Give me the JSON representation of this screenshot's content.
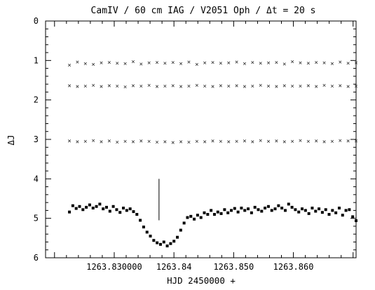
{
  "chart_data": {
    "type": "scatter",
    "title": "CamIV / 60 cm IAG / V2051 Oph / Δt = 20 s",
    "xlabel": "HJD 2450000 +",
    "ylabel": "ΔJ",
    "xlim": [
      1263.8185,
      1263.8705
    ],
    "ylim": [
      6,
      0
    ],
    "y_inverted": true,
    "grid": false,
    "x_ticks": [
      {
        "value": 1263.83,
        "label": "1263.830000"
      },
      {
        "value": 1263.84,
        "label": "1263.84"
      },
      {
        "value": 1263.85,
        "label": "1263.850"
      },
      {
        "value": 1263.86,
        "label": "1263.860"
      }
    ],
    "y_ticks": [
      {
        "value": 0,
        "label": "0"
      },
      {
        "value": 1,
        "label": "1"
      },
      {
        "value": 2,
        "label": "2"
      },
      {
        "value": 3,
        "label": "3"
      },
      {
        "value": 4,
        "label": "4"
      },
      {
        "value": 5,
        "label": "5"
      },
      {
        "value": 6,
        "label": "6"
      }
    ],
    "x_range_data": [
      1263.8225,
      1263.8705
    ],
    "series": [
      {
        "marker": "cross",
        "values": [
          1.12,
          1.04,
          1.08,
          1.1,
          1.06,
          1.05,
          1.07,
          1.08,
          1.03,
          1.09,
          1.06,
          1.05,
          1.07,
          1.05,
          1.08,
          1.04,
          1.1,
          1.06,
          1.05,
          1.07,
          1.06,
          1.04,
          1.08,
          1.05,
          1.07,
          1.06,
          1.05,
          1.09,
          1.03,
          1.06,
          1.07,
          1.05,
          1.06,
          1.08,
          1.04,
          1.07,
          1.06
        ]
      },
      {
        "marker": "cross",
        "values": [
          1.64,
          1.66,
          1.65,
          1.63,
          1.66,
          1.64,
          1.65,
          1.67,
          1.64,
          1.65,
          1.63,
          1.66,
          1.65,
          1.64,
          1.66,
          1.65,
          1.63,
          1.65,
          1.66,
          1.64,
          1.65,
          1.64,
          1.66,
          1.65,
          1.63,
          1.65,
          1.66,
          1.64,
          1.65,
          1.65,
          1.64,
          1.66,
          1.63,
          1.65,
          1.64,
          1.66,
          1.65
        ]
      },
      {
        "marker": "cross",
        "values": [
          3.04,
          3.06,
          3.05,
          3.03,
          3.06,
          3.04,
          3.07,
          3.05,
          3.06,
          3.04,
          3.05,
          3.07,
          3.06,
          3.08,
          3.06,
          3.07,
          3.05,
          3.06,
          3.04,
          3.05,
          3.06,
          3.05,
          3.04,
          3.06,
          3.03,
          3.05,
          3.04,
          3.06,
          3.05,
          3.03,
          3.05,
          3.04,
          3.06,
          3.05,
          3.03,
          3.04,
          3.04
        ]
      },
      {
        "marker": "filled",
        "values": [
          4.84,
          4.68,
          4.75,
          4.7,
          4.78,
          4.72,
          4.66,
          4.74,
          4.7,
          4.64,
          4.76,
          4.72,
          4.82,
          4.7,
          4.78,
          4.85,
          4.74,
          4.8,
          4.76,
          4.83,
          4.9,
          5.05,
          5.22,
          5.35,
          5.45,
          5.56,
          5.62,
          5.66,
          5.6,
          5.7,
          5.64,
          5.58,
          5.48,
          5.3,
          5.12,
          4.98,
          4.95,
          5.02,
          4.92,
          4.98,
          4.86,
          4.9,
          4.8,
          4.9,
          4.84,
          4.88,
          4.78,
          4.86,
          4.8,
          4.75,
          4.84,
          4.74,
          4.8,
          4.76,
          4.86,
          4.72,
          4.78,
          4.82,
          4.74,
          4.7,
          4.8,
          4.76,
          4.68,
          4.74,
          4.8,
          4.64,
          4.72,
          4.78,
          4.84,
          4.76,
          4.8,
          4.88,
          4.74,
          4.82,
          4.76,
          4.85,
          4.78,
          4.9,
          4.8,
          4.86,
          4.74,
          4.92,
          4.8,
          4.78,
          4.96,
          5.06
        ]
      }
    ],
    "annotations": [
      {
        "type": "vline_segment",
        "x": 1263.8375,
        "y_from": 4.0,
        "y_to": 5.05
      }
    ]
  }
}
